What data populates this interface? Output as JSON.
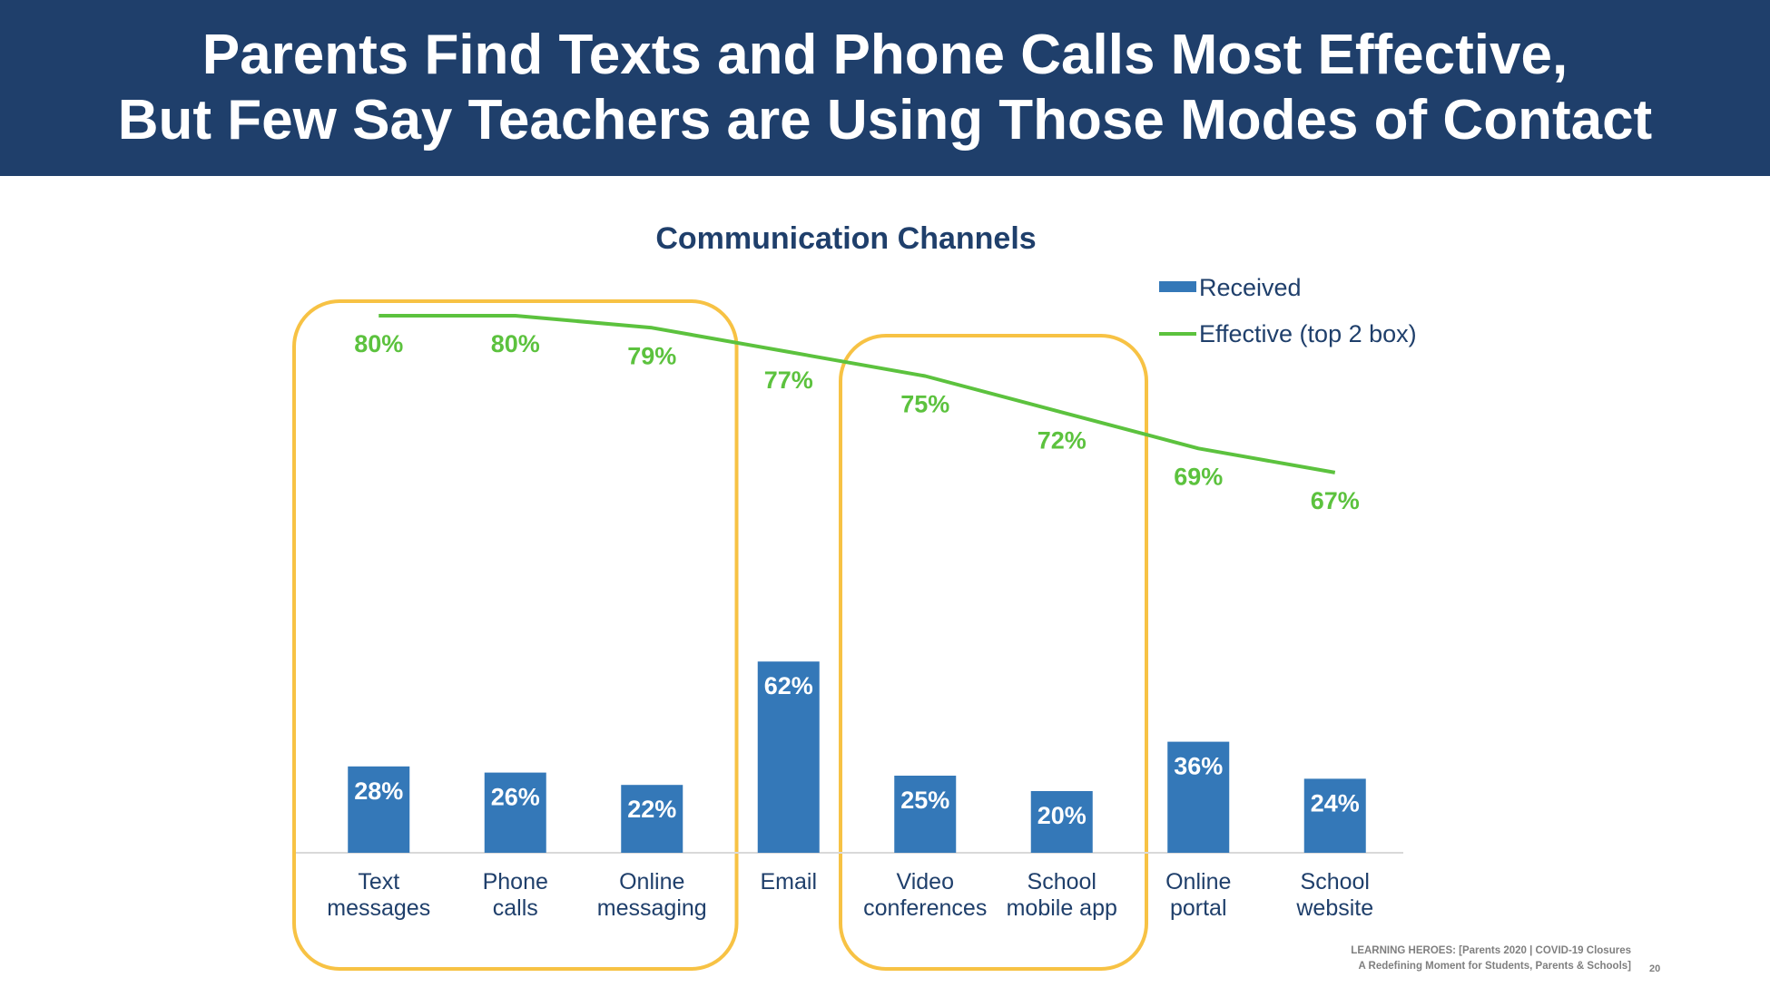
{
  "header": {
    "title_line1": "Parents Find Texts and Phone Calls Most Effective,",
    "title_line2": "But Few Say Teachers are Using Those Modes of Contact"
  },
  "footer": {
    "line1": "LEARNING HEROES: [Parents 2020 | COVID-19 Closures",
    "line2": "A Redefining Moment for Students, Parents & Schools]",
    "page_number": "20"
  },
  "colors": {
    "bar": "#3478b8",
    "line": "#5cc23e",
    "highlight_box": "#f7c244",
    "title_text": "#1f3f6b",
    "banner": "#1f3f6b"
  },
  "chart_data": {
    "type": "bar",
    "title": "Communication Channels",
    "categories": [
      [
        "Text",
        "messages"
      ],
      [
        "Phone",
        "calls"
      ],
      [
        "Online",
        "messaging"
      ],
      [
        "Email"
      ],
      [
        "Video",
        "conferences"
      ],
      [
        "School",
        "mobile app"
      ],
      [
        "Online",
        "portal"
      ],
      [
        "School",
        "website"
      ]
    ],
    "series": [
      {
        "name": "Received",
        "type": "bar",
        "values": [
          28,
          26,
          22,
          62,
          25,
          20,
          36,
          24
        ],
        "labels": [
          "28%",
          "26%",
          "22%",
          "62%",
          "25%",
          "20%",
          "36%",
          "24%"
        ]
      },
      {
        "name": "Effective (top 2 box)",
        "type": "line",
        "values": [
          80,
          80,
          79,
          77,
          75,
          72,
          69,
          67
        ],
        "labels": [
          "80%",
          "80%",
          "79%",
          "77%",
          "75%",
          "72%",
          "69%",
          "67%"
        ]
      }
    ],
    "ylim": [
      0,
      100
    ],
    "grid": false,
    "legend_position": "top-right",
    "highlight_groups": [
      [
        0,
        2
      ],
      [
        4,
        5
      ]
    ]
  }
}
